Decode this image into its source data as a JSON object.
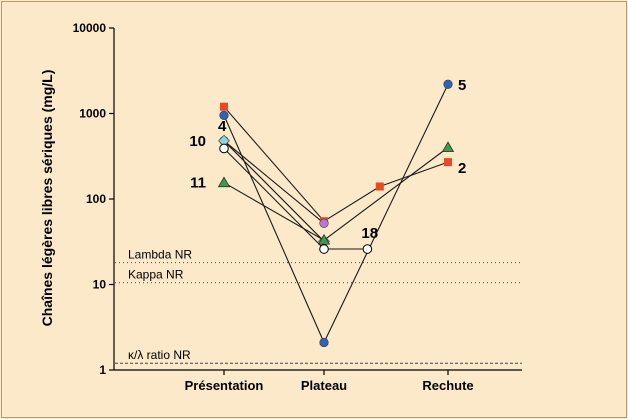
{
  "chart_data": {
    "type": "line",
    "title": "",
    "xlabel": "",
    "ylabel": "Chaînes légères libres sériques (mg/L)",
    "y_scale": "log",
    "ylim": [
      1,
      10000
    ],
    "y_ticks": [
      "1",
      "10",
      "100",
      "1000",
      "10000"
    ],
    "categories": [
      "Présentation",
      "Plateau",
      "Rechute"
    ],
    "grid": false,
    "reference_lines": [
      {
        "label": "Lambda NR",
        "value": 18,
        "style": "dotted"
      },
      {
        "label": "Kappa NR",
        "value": 10.5,
        "style": "dotted"
      },
      {
        "label": "κ/λ ratio NR",
        "value": 1.2,
        "style": "dashed"
      }
    ],
    "series": [
      {
        "name": "5",
        "marker": "circle",
        "color": "#2e64b8",
        "points": [
          {
            "cat": 0,
            "y": 950
          },
          {
            "cat": 1,
            "y": 2.1
          },
          {
            "cat": 2,
            "y": 2200
          }
        ]
      },
      {
        "name": "2",
        "marker": "square",
        "color": "#e84a24",
        "points": [
          {
            "cat": 0,
            "y": 1200
          },
          {
            "cat": 1,
            "y": 55
          },
          {
            "cat": 1.45,
            "y": 140
          },
          {
            "cat": 2,
            "y": 270
          }
        ]
      },
      {
        "name": "10",
        "marker": "circle",
        "color": "#b57ad6",
        "points": [
          {
            "cat": 0,
            "y": 480
          },
          {
            "cat": 1,
            "y": 52
          }
        ]
      },
      {
        "name": "4",
        "marker": "diamond",
        "color": "#8fd3df",
        "points": [
          {
            "cat": 0,
            "y": 480
          },
          {
            "cat": 1,
            "y": 32
          }
        ]
      },
      {
        "name": "11",
        "marker": "triangle",
        "color": "#3f9a4c",
        "points": [
          {
            "cat": 0,
            "y": 155
          },
          {
            "cat": 1,
            "y": 33
          },
          {
            "cat": 2,
            "y": 400
          }
        ]
      },
      {
        "name": "18",
        "marker": "circle-open",
        "color": "#ffffff",
        "points": [
          {
            "cat": 0,
            "y": 390
          },
          {
            "cat": 1,
            "y": 26
          },
          {
            "cat": 1.35,
            "y": 26
          }
        ]
      }
    ],
    "point_labels": [
      {
        "text": "5",
        "cat": 2,
        "y": 2200,
        "anchor": "right"
      },
      {
        "text": "2",
        "cat": 2,
        "y": 270,
        "anchor": "right-low"
      },
      {
        "text": "10",
        "cat": 0,
        "y": 480,
        "anchor": "left"
      },
      {
        "text": "4",
        "cat": 0,
        "y": 480,
        "anchor": "above-right"
      },
      {
        "text": "11",
        "cat": 0,
        "y": 155,
        "anchor": "left"
      },
      {
        "text": "18",
        "cat": 1.35,
        "y": 26,
        "anchor": "above"
      }
    ]
  }
}
